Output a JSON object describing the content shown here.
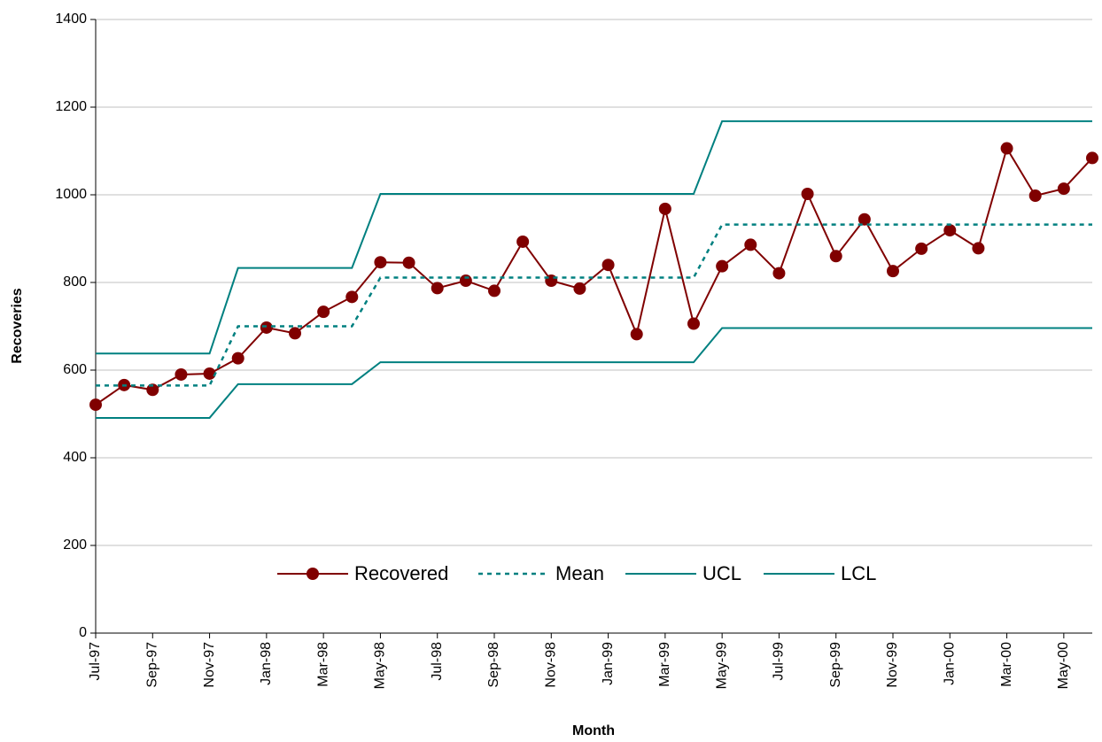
{
  "chart_data": {
    "type": "line",
    "x_label": "Month",
    "y_label": "Recoveries",
    "categories": [
      "Jul-97",
      null,
      "Sep-97",
      null,
      "Nov-97",
      null,
      "Jan-98",
      null,
      "Mar-98",
      null,
      "May-98",
      null,
      "Jul-98",
      null,
      "Sep-98",
      null,
      "Nov-98",
      null,
      "Jan-99",
      null,
      "Mar-99",
      null,
      "May-99",
      null,
      "Jul-99",
      null,
      "Sep-99",
      null,
      "Nov-99",
      null,
      "Jan-00",
      null,
      "Mar-00",
      null,
      "May-00",
      null
    ],
    "series": [
      {
        "name": "Recovered",
        "color": "#800000",
        "marker": "circle",
        "line_style": "solid",
        "values": [
          521,
          566,
          555,
          590,
          592,
          627,
          697,
          684,
          733,
          767,
          846,
          845,
          787,
          804,
          781,
          893,
          804,
          786,
          840,
          682,
          968,
          706,
          837,
          886,
          821,
          1002,
          860,
          944,
          826,
          877,
          919,
          878,
          1106,
          998,
          1014,
          1084
        ]
      },
      {
        "name": "Mean",
        "color": "#008080",
        "marker": "none",
        "line_style": "dashed",
        "values": [
          565,
          565,
          565,
          565,
          565,
          700,
          700,
          700,
          700,
          700,
          811,
          811,
          811,
          811,
          811,
          811,
          811,
          811,
          811,
          811,
          811,
          811,
          932,
          932,
          932,
          932,
          932,
          932,
          932,
          932,
          932,
          932,
          932,
          932,
          932,
          932
        ]
      },
      {
        "name": "UCL",
        "color": "#008080",
        "marker": "none",
        "line_style": "solid",
        "values": [
          638,
          638,
          638,
          638,
          638,
          833,
          833,
          833,
          833,
          833,
          1002,
          1002,
          1002,
          1002,
          1002,
          1002,
          1002,
          1002,
          1002,
          1002,
          1002,
          1002,
          1168,
          1168,
          1168,
          1168,
          1168,
          1168,
          1168,
          1168,
          1168,
          1168,
          1168,
          1168,
          1168,
          1168
        ]
      },
      {
        "name": "LCL",
        "color": "#008080",
        "marker": "none",
        "line_style": "solid",
        "values": [
          491,
          491,
          491,
          491,
          491,
          568,
          568,
          568,
          568,
          568,
          618,
          618,
          618,
          618,
          618,
          618,
          618,
          618,
          618,
          618,
          618,
          618,
          696,
          696,
          696,
          696,
          696,
          696,
          696,
          696,
          696,
          696,
          696,
          696,
          696,
          696
        ]
      }
    ],
    "ylim": [
      0,
      1400
    ],
    "yticks": [
      0,
      200,
      400,
      600,
      800,
      1000,
      1200,
      1400
    ],
    "grid": true,
    "legend": "bottom"
  }
}
